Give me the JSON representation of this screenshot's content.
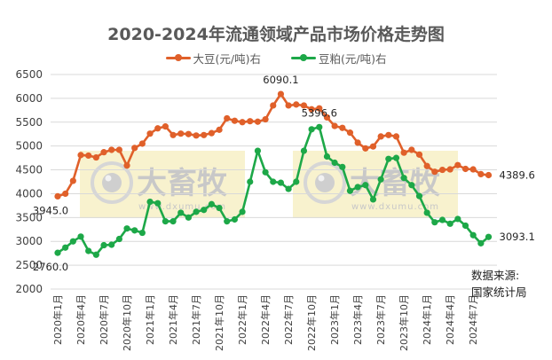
{
  "title": "2020-2024年流通领域产品市场价格走势图",
  "legend": [
    {
      "label": "大豆(元/吨)右",
      "color": "#E0602A"
    },
    {
      "label": "豆粕(元/吨)右",
      "color": "#1DA848"
    }
  ],
  "source": {
    "line1": "数据来源:",
    "line2": "国家统计局"
  },
  "watermark": {
    "brand": "大畜牧",
    "url": "www.dxumu.com"
  },
  "colors": {
    "soybean": "#E0602A",
    "meal": "#1DA848",
    "grid": "#D9D9D9",
    "axis_text": "#404040",
    "watermark_bg": "#F7F0C6"
  },
  "chart_data": {
    "type": "line",
    "title": "2020-2024年流通领域产品市场价格走势图",
    "xlabel": "",
    "ylabel": "",
    "ylim": [
      2000,
      6500
    ],
    "yticks": [
      2000,
      2500,
      3000,
      3500,
      4000,
      4500,
      5000,
      5500,
      6000,
      6500
    ],
    "grid": true,
    "legend_position": "top",
    "x_tick_labels": [
      "2020年1月",
      "2020年4月",
      "2020年7月",
      "2020年10月",
      "2021年1月",
      "2021年4月",
      "2021年7月",
      "2021年10月",
      "2022年1月",
      "2022年4月",
      "2022年7月",
      "2022年10月",
      "2023年1月",
      "2023年4月",
      "2023年7月",
      "2023年10月",
      "2024年1月",
      "2024年4月",
      "2024年7月"
    ],
    "x_tick_step": 3,
    "x_count": 57,
    "series": [
      {
        "name": "大豆(元/吨)右",
        "color": "#E0602A",
        "values": [
          3945.0,
          4000,
          4270,
          4810,
          4800,
          4760,
          4870,
          4920,
          4920,
          4590,
          4960,
          5050,
          5260,
          5370,
          5410,
          5230,
          5260,
          5250,
          5220,
          5230,
          5270,
          5340,
          5580,
          5530,
          5500,
          5520,
          5510,
          5560,
          5850,
          6090.1,
          5850,
          5870,
          5850,
          5770,
          5790,
          5600,
          5420,
          5380,
          5280,
          5070,
          4950,
          4990,
          5200,
          5230,
          5200,
          4860,
          4920,
          4820,
          4580,
          4460,
          4500,
          4510,
          4600,
          4520,
          4510,
          4410,
          4389.6
        ],
        "annotations": [
          {
            "index": 0,
            "text": "3945.0",
            "pos": "below"
          },
          {
            "index": 29,
            "text": "6090.1",
            "pos": "above"
          },
          {
            "index": 56,
            "text": "4389.6",
            "pos": "right"
          }
        ]
      },
      {
        "name": "豆粕(元/吨)右",
        "color": "#1DA848",
        "values": [
          2760.0,
          2870,
          3000,
          3100,
          2800,
          2720,
          2920,
          2930,
          3050,
          3270,
          3230,
          3180,
          3830,
          3800,
          3420,
          3420,
          3600,
          3500,
          3620,
          3660,
          3780,
          3700,
          3420,
          3460,
          3620,
          4250,
          4900,
          4450,
          4250,
          4230,
          4100,
          4250,
          4900,
          5350,
          5396.6,
          4780,
          4650,
          4560,
          4060,
          4140,
          4180,
          3880,
          4300,
          4730,
          4750,
          4330,
          4180,
          3950,
          3600,
          3400,
          3450,
          3370,
          3470,
          3330,
          3130,
          2960,
          3093.1
        ],
        "annotations": [
          {
            "index": 0,
            "text": "2760.0",
            "pos": "below"
          },
          {
            "index": 34,
            "text": "5396.6",
            "pos": "above"
          },
          {
            "index": 56,
            "text": "3093.1",
            "pos": "right"
          }
        ]
      }
    ]
  }
}
